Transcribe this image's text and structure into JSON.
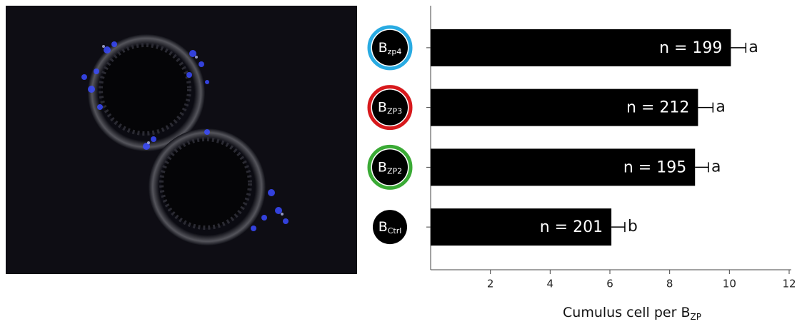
{
  "chart_data": {
    "type": "barh",
    "categories": [
      {
        "label": "B",
        "subscript": "zp4",
        "ring": "#29abe2"
      },
      {
        "label": "B",
        "subscript": "ZP3",
        "ring": "#d7191c"
      },
      {
        "label": "B",
        "subscript": "ZP2",
        "ring": "#3aaa35"
      },
      {
        "label": "B",
        "subscript": "Ctrl"
      }
    ],
    "values": [
      10.05,
      8.95,
      8.85,
      6.05
    ],
    "errors": [
      0.5,
      0.5,
      0.45,
      0.45
    ],
    "bar_labels": [
      "n = 199",
      "n = 212",
      "n = 195",
      "n = 201"
    ],
    "significance": [
      "a",
      "a",
      "a",
      "b"
    ],
    "color": "#000000",
    "xlabel": {
      "text": "Cumulus cell per B",
      "subscript": "ZP"
    },
    "xlim": [
      0,
      12
    ],
    "xticks": [
      2,
      4,
      6,
      8,
      10,
      12
    ]
  }
}
